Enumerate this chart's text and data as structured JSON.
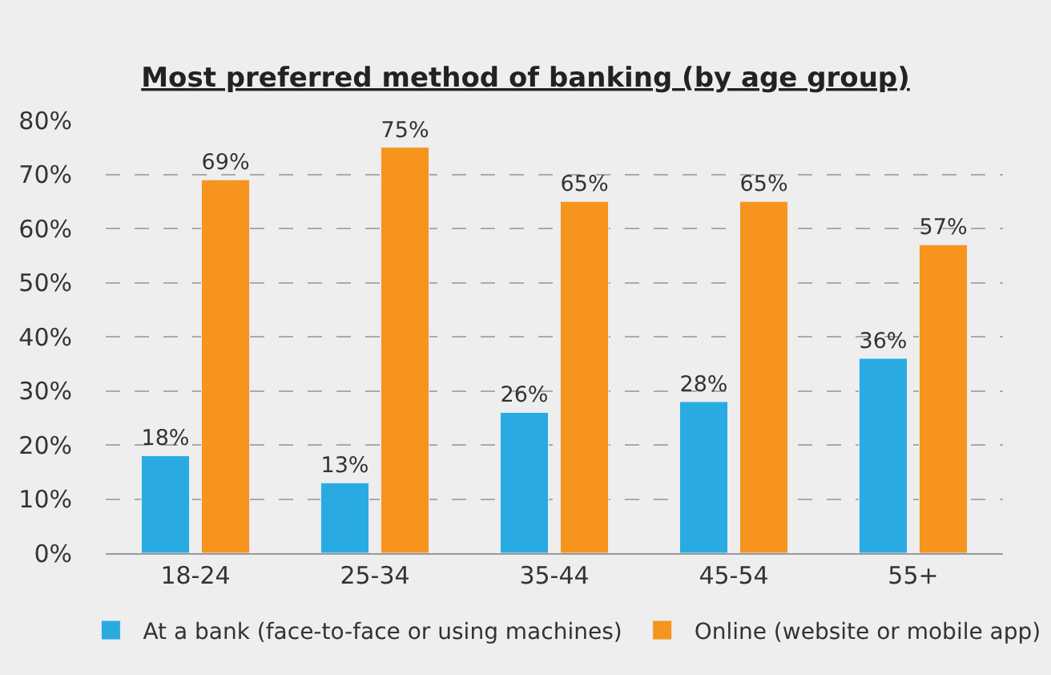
{
  "chart_data": {
    "type": "bar",
    "title": "Most preferred method of banking (by age group)",
    "categories": [
      "18-24",
      "25-34",
      "35-44",
      "45-54",
      "55+"
    ],
    "series": [
      {
        "name": "At a bank (face-to-face or using machines)",
        "color": "#29abe2",
        "values": [
          18,
          13,
          26,
          28,
          36
        ],
        "value_labels": [
          "18%",
          "13%",
          "26%",
          "28%",
          "36%"
        ]
      },
      {
        "name": "Online (website or mobile app)",
        "color": "#f7941d",
        "values": [
          69,
          75,
          65,
          65,
          57
        ],
        "value_labels": [
          "69%",
          "75%",
          "65%",
          "65%",
          "57%"
        ]
      }
    ],
    "ylim": [
      0,
      80
    ],
    "yticks": [
      {
        "value": 0,
        "label": "0%"
      },
      {
        "value": 10,
        "label": "10%"
      },
      {
        "value": 20,
        "label": "20%"
      },
      {
        "value": 30,
        "label": "30%"
      },
      {
        "value": 40,
        "label": "40%"
      },
      {
        "value": 50,
        "label": "50%"
      },
      {
        "value": 60,
        "label": "60%"
      },
      {
        "value": 70,
        "label": "70%"
      },
      {
        "value": 80,
        "label": "80%"
      }
    ],
    "grid": "y",
    "legend": "bottom"
  }
}
